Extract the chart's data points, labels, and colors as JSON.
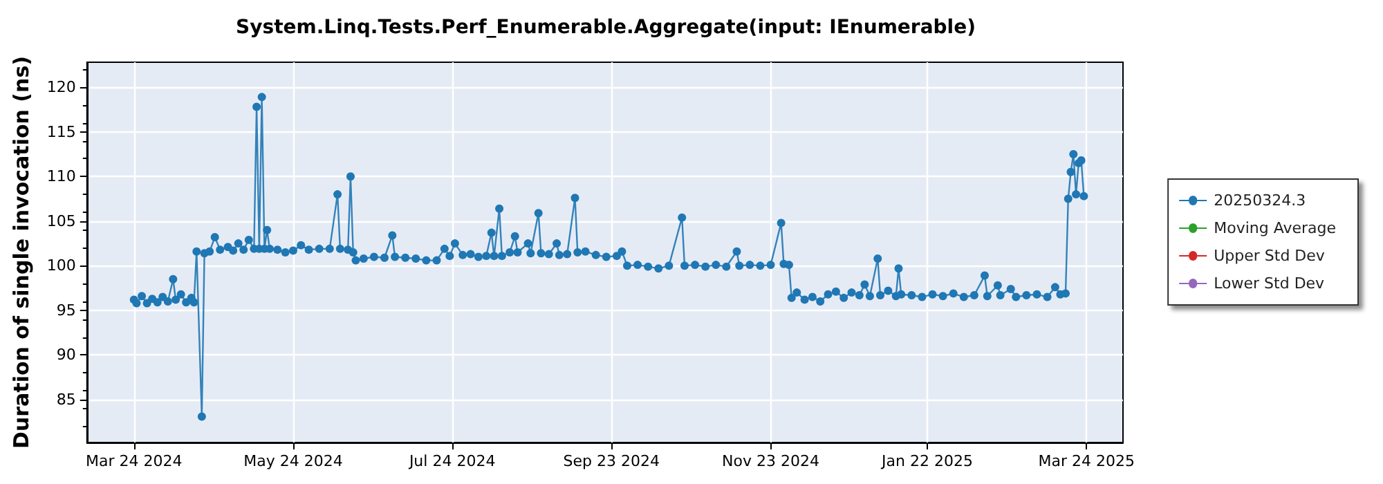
{
  "chart_data": {
    "type": "line",
    "title": "System.Linq.Tests.Perf_Enumerable.Aggregate(input: IEnumerable)",
    "ylabel": "Duration of single invocation (ns)",
    "xlim": [
      "2024-03-06",
      "2025-04-07"
    ],
    "xticks": [
      {
        "value": "2024-03-24",
        "label": "Mar 24 2024"
      },
      {
        "value": "2024-05-24",
        "label": "May 24 2024"
      },
      {
        "value": "2024-07-24",
        "label": "Jul 24 2024"
      },
      {
        "value": "2024-09-23",
        "label": "Sep 23 2024"
      },
      {
        "value": "2024-11-23",
        "label": "Nov 23 2024"
      },
      {
        "value": "2025-01-22",
        "label": "Jan 22 2025"
      },
      {
        "value": "2025-03-24",
        "label": "Mar 24 2025"
      }
    ],
    "ylim": [
      80.2,
      122.8
    ],
    "yticks": [
      85,
      90,
      95,
      100,
      105,
      110,
      115,
      120
    ],
    "grid": true,
    "legend": "right",
    "marker": "circle",
    "line_style": "solid",
    "series": [
      {
        "name": "20250324.3",
        "color": "#1f77b4",
        "x": [
          "2024-03-24",
          "2024-03-25",
          "2024-03-27",
          "2024-03-29",
          "2024-03-31",
          "2024-04-02",
          "2024-04-04",
          "2024-04-06",
          "2024-04-08",
          "2024-04-09",
          "2024-04-11",
          "2024-04-13",
          "2024-04-15",
          "2024-04-16",
          "2024-04-17",
          "2024-04-19",
          "2024-04-20",
          "2024-04-22",
          "2024-04-24",
          "2024-04-26",
          "2024-04-29",
          "2024-05-01",
          "2024-05-03",
          "2024-05-05",
          "2024-05-07",
          "2024-05-09",
          "2024-05-10",
          "2024-05-11",
          "2024-05-12",
          "2024-05-13",
          "2024-05-14",
          "2024-05-15",
          "2024-05-18",
          "2024-05-21",
          "2024-05-24",
          "2024-05-27",
          "2024-05-30",
          "2024-06-03",
          "2024-06-07",
          "2024-06-10",
          "2024-06-11",
          "2024-06-14",
          "2024-06-15",
          "2024-06-16",
          "2024-06-17",
          "2024-06-20",
          "2024-06-24",
          "2024-06-28",
          "2024-07-01",
          "2024-07-02",
          "2024-07-06",
          "2024-07-10",
          "2024-07-14",
          "2024-07-18",
          "2024-07-21",
          "2024-07-23",
          "2024-07-25",
          "2024-07-28",
          "2024-07-31",
          "2024-08-03",
          "2024-08-06",
          "2024-08-08",
          "2024-08-09",
          "2024-08-11",
          "2024-08-12",
          "2024-08-15",
          "2024-08-17",
          "2024-08-18",
          "2024-08-22",
          "2024-08-23",
          "2024-08-26",
          "2024-08-27",
          "2024-08-30",
          "2024-09-02",
          "2024-09-03",
          "2024-09-06",
          "2024-09-09",
          "2024-09-10",
          "2024-09-13",
          "2024-09-17",
          "2024-09-21",
          "2024-09-25",
          "2024-09-27",
          "2024-09-29",
          "2024-10-03",
          "2024-10-07",
          "2024-10-11",
          "2024-10-15",
          "2024-10-20",
          "2024-10-21",
          "2024-10-25",
          "2024-10-29",
          "2024-11-02",
          "2024-11-06",
          "2024-11-10",
          "2024-11-11",
          "2024-11-15",
          "2024-11-19",
          "2024-11-23",
          "2024-11-27",
          "2024-11-28",
          "2024-11-30",
          "2024-12-01",
          "2024-12-03",
          "2024-12-06",
          "2024-12-09",
          "2024-12-12",
          "2024-12-15",
          "2024-12-18",
          "2024-12-21",
          "2024-12-24",
          "2024-12-27",
          "2024-12-29",
          "2024-12-31",
          "2025-01-03",
          "2025-01-04",
          "2025-01-07",
          "2025-01-10",
          "2025-01-11",
          "2025-01-12",
          "2025-01-16",
          "2025-01-20",
          "2025-01-24",
          "2025-01-28",
          "2025-02-01",
          "2025-02-05",
          "2025-02-09",
          "2025-02-13",
          "2025-02-14",
          "2025-02-18",
          "2025-02-19",
          "2025-02-23",
          "2025-02-25",
          "2025-03-01",
          "2025-03-05",
          "2025-03-09",
          "2025-03-12",
          "2025-03-14",
          "2025-03-16",
          "2025-03-17",
          "2025-03-18",
          "2025-03-19",
          "2025-03-20",
          "2025-03-21",
          "2025-03-22",
          "2025-03-23"
        ],
        "values": [
          96.2,
          95.8,
          96.6,
          95.8,
          96.3,
          95.9,
          96.5,
          96.0,
          98.5,
          96.2,
          96.8,
          95.9,
          96.4,
          95.9,
          101.6,
          83.1,
          101.4,
          101.6,
          103.2,
          101.8,
          102.1,
          101.7,
          102.5,
          101.8,
          102.9,
          101.9,
          117.8,
          101.9,
          118.9,
          101.9,
          104.0,
          101.9,
          101.8,
          101.5,
          101.7,
          102.3,
          101.8,
          101.9,
          101.9,
          108.0,
          101.9,
          101.8,
          110.0,
          101.5,
          100.6,
          100.8,
          101.0,
          100.9,
          103.4,
          101.0,
          100.9,
          100.8,
          100.6,
          100.6,
          101.9,
          101.1,
          102.5,
          101.2,
          101.3,
          101.0,
          101.1,
          103.7,
          101.1,
          106.4,
          101.1,
          101.5,
          103.3,
          101.5,
          102.5,
          101.4,
          105.9,
          101.4,
          101.3,
          102.5,
          101.2,
          101.3,
          107.6,
          101.5,
          101.6,
          101.2,
          101.0,
          101.1,
          101.6,
          100.0,
          100.1,
          99.9,
          99.7,
          100.0,
          105.4,
          100.0,
          100.1,
          99.9,
          100.1,
          99.9,
          101.6,
          100.0,
          100.1,
          100.0,
          100.1,
          104.8,
          100.2,
          100.1,
          96.4,
          97.0,
          96.2,
          96.5,
          96.0,
          96.8,
          97.1,
          96.4,
          97.0,
          96.7,
          97.9,
          96.6,
          100.8,
          96.7,
          97.2,
          96.6,
          99.7,
          96.8,
          96.7,
          96.5,
          96.8,
          96.6,
          96.9,
          96.5,
          96.7,
          98.9,
          96.6,
          97.8,
          96.7,
          97.4,
          96.5,
          96.7,
          96.8,
          96.5,
          97.6,
          96.8,
          96.9,
          107.5,
          110.5,
          112.5,
          108.0,
          111.5,
          111.8,
          107.8
        ]
      },
      {
        "name": "Moving Average",
        "color": "#2ca02c"
      },
      {
        "name": "Upper Std Dev",
        "color": "#d62728"
      },
      {
        "name": "Lower Std Dev",
        "color": "#9467bd"
      }
    ]
  }
}
